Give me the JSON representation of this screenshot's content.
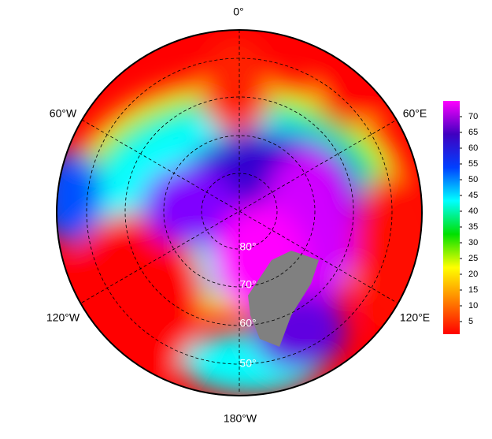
{
  "map": {
    "meridian_labels": [
      "0°",
      "60°E",
      "120°E",
      "180°W",
      "120°W",
      "60°W"
    ],
    "latitude_labels": [
      "80°",
      "70°",
      "60°",
      "50°"
    ]
  },
  "colorbar": {
    "lim": [
      1,
      75
    ],
    "ticks": [
      5,
      10,
      15,
      20,
      25,
      30,
      35,
      40,
      45,
      50,
      55,
      60,
      65,
      70
    ],
    "colors": [
      "#ff0000",
      "#ff8000",
      "#ffff00",
      "#00e000",
      "#00ffff",
      "#0040ff",
      "#4000c0",
      "#ff00ff"
    ]
  }
}
